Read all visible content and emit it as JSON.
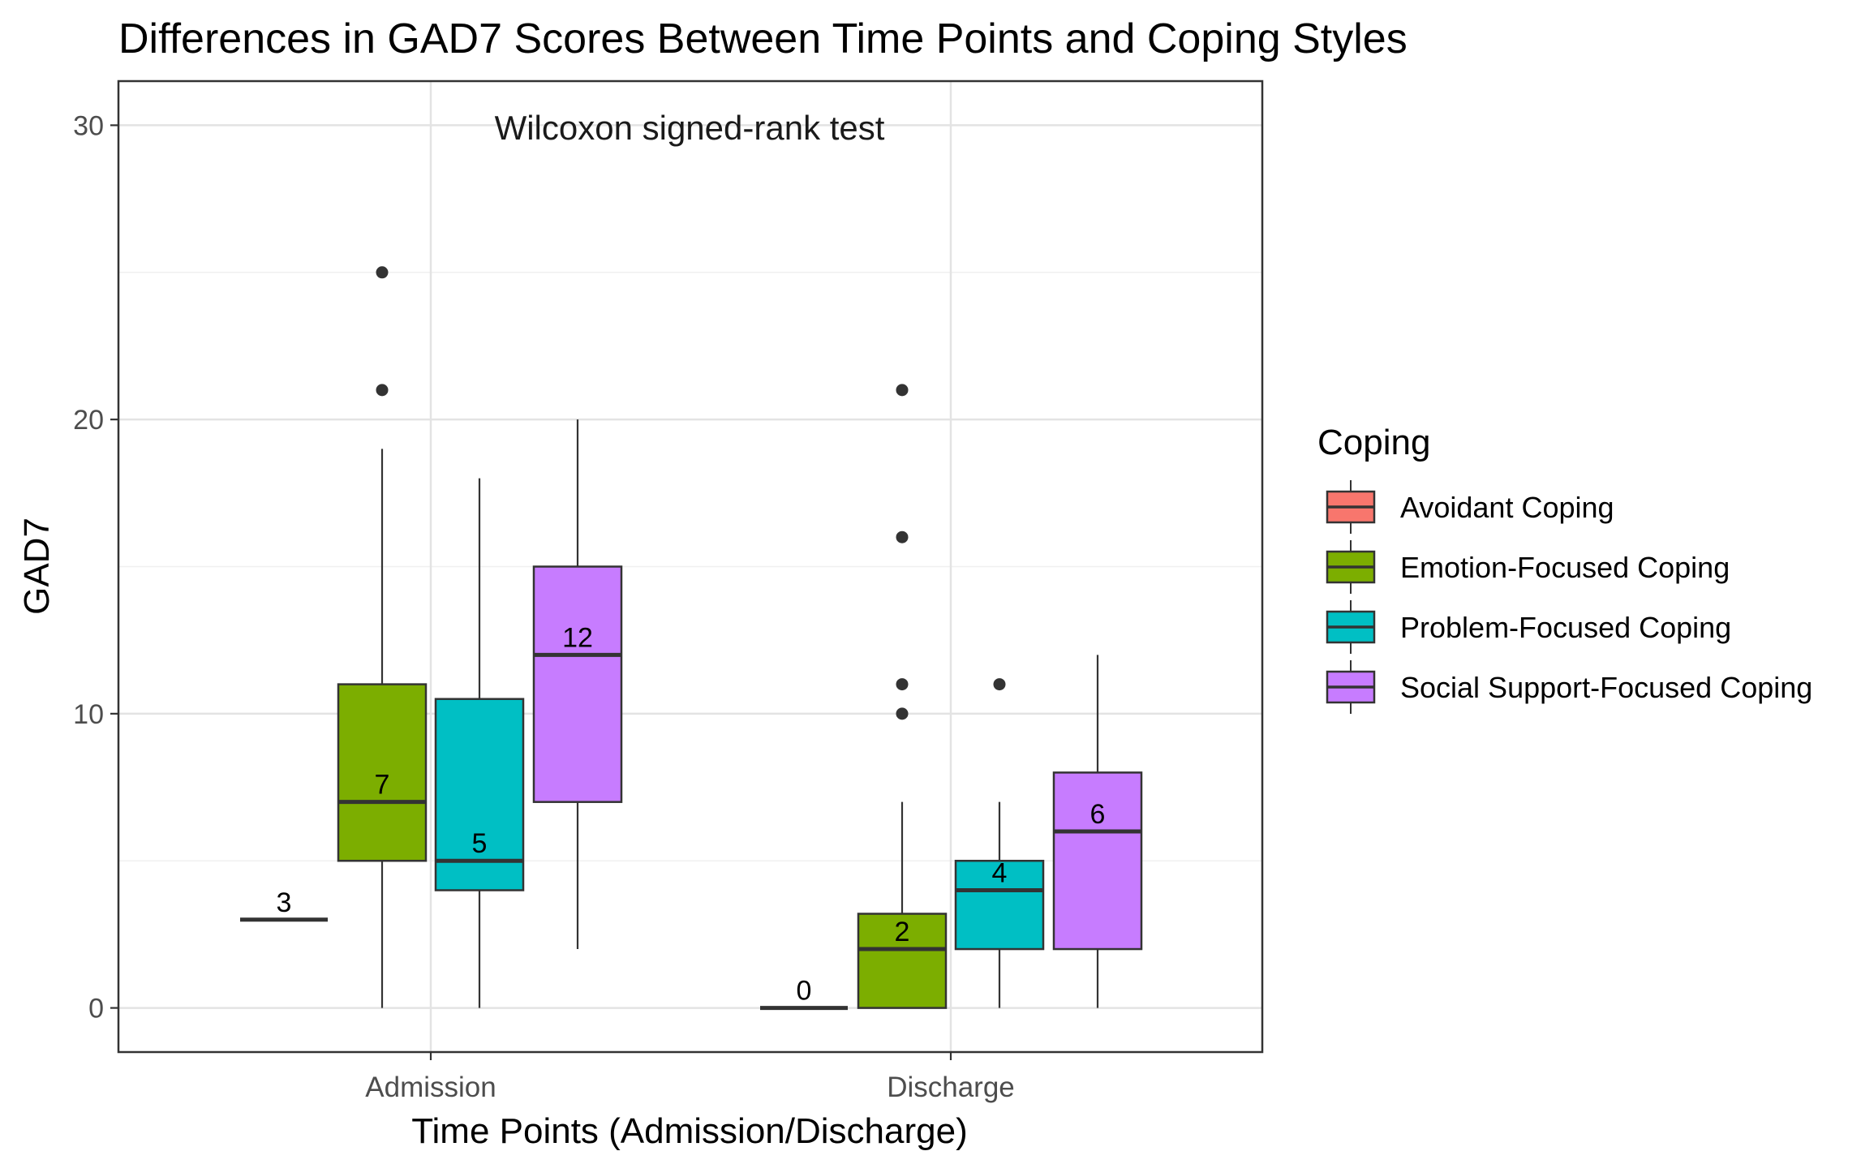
{
  "chart_data": {
    "type": "boxplot",
    "title": "Differences in GAD7 Scores Between Time Points and Coping Styles",
    "annotation": "Wilcoxon signed-rank test",
    "xlabel": "Time Points (Admission/Discharge)",
    "ylabel": "GAD7",
    "ylim": [
      -1.5,
      31.5
    ],
    "yticks": [
      0,
      10,
      20,
      30
    ],
    "y_tick_labels": [
      "0",
      "10",
      "20",
      "30"
    ],
    "grid": true,
    "categories": [
      "Admission",
      "Discharge"
    ],
    "legend": {
      "title": "Coping",
      "placement": "right",
      "entries": [
        "Avoidant Coping",
        "Emotion-Focused Coping",
        "Problem-Focused Coping",
        "Social Support-Focused Coping"
      ]
    },
    "series": [
      {
        "name": "Avoidant Coping",
        "color": "#F8766D",
        "boxes": [
          {
            "category": "Admission",
            "min": 3,
            "q1": 3,
            "median": 3,
            "q3": 3,
            "max": 3,
            "outliers": [],
            "label": "3"
          },
          {
            "category": "Discharge",
            "min": 0,
            "q1": 0,
            "median": 0,
            "q3": 0,
            "max": 0,
            "outliers": [],
            "label": "0"
          }
        ]
      },
      {
        "name": "Emotion-Focused Coping",
        "color": "#7CAE00",
        "boxes": [
          {
            "category": "Admission",
            "min": 0,
            "q1": 5,
            "median": 7,
            "q3": 11,
            "max": 19,
            "outliers": [
              21,
              25
            ],
            "label": "7"
          },
          {
            "category": "Discharge",
            "min": 0,
            "q1": 0,
            "median": 2,
            "q3": 3.2,
            "max": 7,
            "outliers": [
              10,
              11,
              16,
              21
            ],
            "label": "2"
          }
        ]
      },
      {
        "name": "Problem-Focused Coping",
        "color": "#00BFC4",
        "boxes": [
          {
            "category": "Admission",
            "min": 0,
            "q1": 4,
            "median": 5,
            "q3": 10.5,
            "max": 18,
            "outliers": [],
            "label": "5"
          },
          {
            "category": "Discharge",
            "min": 0,
            "q1": 2,
            "median": 4,
            "q3": 5,
            "max": 7,
            "outliers": [
              11
            ],
            "label": "4"
          }
        ]
      },
      {
        "name": "Social Support-Focused Coping",
        "color": "#C77CFF",
        "boxes": [
          {
            "category": "Admission",
            "min": 2,
            "q1": 7,
            "median": 12,
            "q3": 15,
            "max": 20,
            "outliers": [],
            "label": "12"
          },
          {
            "category": "Discharge",
            "min": 0,
            "q1": 2,
            "median": 6,
            "q3": 8,
            "max": 12,
            "outliers": [],
            "label": "6"
          }
        ]
      }
    ]
  }
}
